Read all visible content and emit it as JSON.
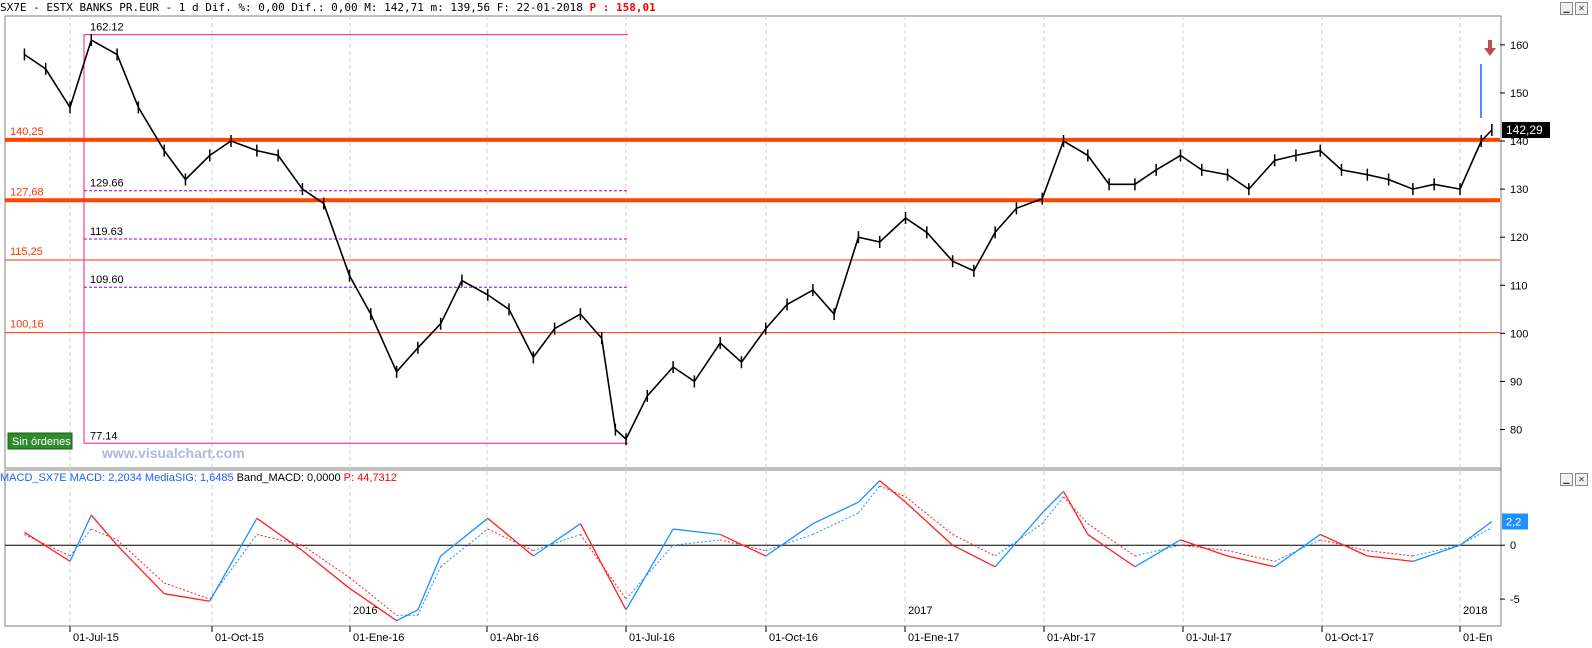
{
  "header": {
    "symbol": "SX7E - ESTX BANKS PR.EUR -",
    "period": " 1 d",
    "pct_label": " Dif. %:",
    "pct_value": " 0,00",
    "dif_label": " Dif.:",
    "dif_value": " 0,00",
    "max_label": " M:",
    "max_value": " 142,71",
    "min_label": " m:",
    "min_value": " 139,56",
    "date_label": " F:",
    "date_value": " 22-01-2018",
    "p_label": " P :",
    "p_value": " 158,01"
  },
  "watermark": "www.visualchart.com",
  "status_badge": "Sin órdenes",
  "price_panel": {
    "y_ticks": [
      "160",
      "150",
      "140",
      "130",
      "120",
      "110",
      "100",
      "90",
      "80"
    ],
    "last_price": "142,29",
    "h_levels": [
      {
        "label": "140,25",
        "value": 140.25,
        "color": "#ff4400",
        "thick": true
      },
      {
        "label": "127,68",
        "value": 127.68,
        "color": "#ff4400",
        "thick": true
      },
      {
        "label": "115,25",
        "value": 115.25,
        "color": "#ff3300",
        "thick": false
      },
      {
        "label": "100,16",
        "value": 100.16,
        "color": "#ff3300",
        "thick": false
      }
    ],
    "fib_levels": [
      {
        "label": "162.12",
        "value": 162.12
      },
      {
        "label": "129.66",
        "value": 129.66
      },
      {
        "label": "119.63",
        "value": 119.63
      },
      {
        "label": "109.60",
        "value": 109.6
      },
      {
        "label": "77.14",
        "value": 77.14
      }
    ]
  },
  "x_labels": [
    "01-Jul-15",
    "01-Oct-15",
    "01-Ene-16",
    "01-Abr-16",
    "01-Jul-16",
    "01-Oct-16",
    "01-Ene-17",
    "01-Abr-17",
    "01-Jul-17",
    "01-Oct-17",
    "01-En"
  ],
  "year_labels": [
    "2016",
    "2017",
    "2018"
  ],
  "macd_panel": {
    "title": "MACD_SX7E",
    "macd_label": " MACD: ",
    "macd_value": "2,2034",
    "sig_label": " MediaSIG: ",
    "sig_value": "1,6485",
    "band_label": " Band_MACD: ",
    "band_value": "0,0000",
    "p_label": " P: ",
    "p_value": "44,7312",
    "y_ticks": [
      "0",
      "-5"
    ],
    "last_value": "2,2"
  },
  "colors": {
    "macd_up": "#1e90ff",
    "macd_down": "#ff2020",
    "fib": "#ff1493",
    "fib_dash": "#9900cc",
    "price": "#000000"
  },
  "chart_data": [
    {
      "type": "line",
      "title": "SX7E - ESTX BANKS PR.EUR",
      "x": [
        "01-Jun-15",
        "15-Jun-15",
        "01-Jul-15",
        "15-Jul-15",
        "01-Aug-15",
        "15-Aug-15",
        "01-Sep-15",
        "15-Sep-15",
        "01-Oct-15",
        "15-Oct-15",
        "01-Nov-15",
        "15-Nov-15",
        "01-Dic-15",
        "15-Dic-15",
        "01-Ene-16",
        "15-Ene-16",
        "01-Feb-16",
        "15-Feb-16",
        "01-Mar-16",
        "15-Mar-16",
        "01-Abr-16",
        "15-Abr-16",
        "01-May-16",
        "15-May-16",
        "01-Jun-16",
        "15-Jun-16",
        "24-Jun-16",
        "01-Jul-16",
        "15-Jul-16",
        "01-Aug-16",
        "15-Aug-16",
        "01-Sep-16",
        "15-Sep-16",
        "01-Oct-16",
        "15-Oct-16",
        "01-Nov-16",
        "15-Nov-16",
        "01-Dic-16",
        "15-Dic-16",
        "01-Ene-17",
        "15-Ene-17",
        "01-Feb-17",
        "15-Feb-17",
        "01-Mar-17",
        "15-Mar-17",
        "01-Abr-17",
        "15-Abr-17",
        "01-May-17",
        "15-May-17",
        "01-Jun-17",
        "15-Jun-17",
        "01-Jul-17",
        "15-Jul-17",
        "01-Aug-17",
        "15-Aug-17",
        "01-Sep-17",
        "15-Sep-17",
        "01-Oct-17",
        "15-Oct-17",
        "01-Nov-17",
        "15-Nov-17",
        "01-Dic-17",
        "15-Dic-17",
        "01-Ene-18",
        "15-Ene-18",
        "22-Ene-18"
      ],
      "series": [
        {
          "values": [
            158,
            155,
            147,
            161,
            158,
            147,
            138,
            132,
            137,
            140,
            138,
            137,
            130,
            127,
            112,
            104,
            92,
            97,
            102,
            111,
            108,
            105,
            95,
            101,
            104,
            99,
            80,
            78,
            87,
            93,
            90,
            98,
            94,
            101,
            106,
            109,
            104,
            120,
            119,
            124,
            121,
            115,
            113,
            121,
            126,
            128,
            140,
            137,
            131,
            131,
            134,
            137,
            134,
            133,
            130,
            136,
            137,
            138,
            134,
            133,
            132,
            130,
            131,
            130,
            140,
            142.29
          ]
        }
      ],
      "ylim": [
        72,
        166
      ]
    },
    {
      "type": "line",
      "title": "MACD_SX7E",
      "x": [
        "01-Jun-15",
        "01-Jul-15",
        "15-Jul-15",
        "01-Aug-15",
        "01-Sep-15",
        "01-Oct-15",
        "01-Nov-15",
        "01-Dic-15",
        "01-Ene-16",
        "01-Feb-16",
        "15-Feb-16",
        "01-Mar-16",
        "01-Abr-16",
        "01-May-16",
        "01-Jun-16",
        "01-Jul-16",
        "01-Aug-16",
        "01-Sep-16",
        "01-Oct-16",
        "01-Nov-16",
        "01-Dic-16",
        "15-Dic-16",
        "01-Ene-17",
        "01-Feb-17",
        "01-Mar-17",
        "01-Abr-17",
        "15-Abr-17",
        "01-May-17",
        "01-Jun-17",
        "01-Jul-17",
        "01-Aug-17",
        "01-Sep-17",
        "01-Oct-17",
        "01-Nov-17",
        "01-Dic-17",
        "01-Ene-18",
        "22-Ene-18"
      ],
      "series": [
        {
          "name": "MACD",
          "values": [
            1.2,
            -1.5,
            2.8,
            0,
            -4.5,
            -5.2,
            2.5,
            -0.5,
            -4,
            -7,
            -6,
            -1,
            2.5,
            -1,
            2,
            -6,
            1.5,
            1,
            -1,
            2,
            4,
            6,
            4,
            0,
            -2,
            3,
            5,
            1,
            -2,
            0.5,
            -1,
            -2,
            1,
            -1,
            -1.5,
            0,
            2.2034
          ]
        },
        {
          "name": "MediaSIG",
          "values": [
            1,
            -1,
            1.5,
            0.5,
            -3.5,
            -5,
            1,
            0,
            -3,
            -6.5,
            -6.5,
            -2,
            1.5,
            -0.5,
            1,
            -5,
            0,
            0.5,
            -0.5,
            1,
            3,
            5.5,
            4.5,
            1,
            -1,
            2,
            4.5,
            2,
            -1,
            0,
            -0.5,
            -1.5,
            0.5,
            -0.5,
            -1,
            0,
            1.6485
          ]
        }
      ],
      "ylim": [
        -7.5,
        5.5
      ]
    }
  ]
}
